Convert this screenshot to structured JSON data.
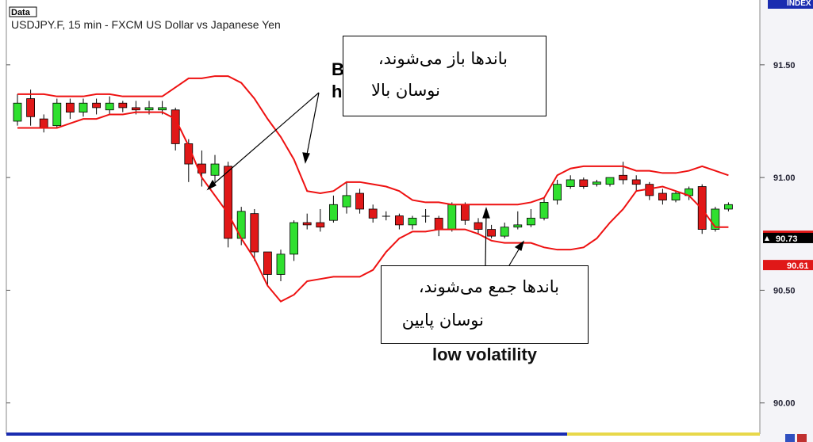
{
  "chart_data": {
    "type": "candlestick",
    "header_label": "Data",
    "title": "USDJPY.F, 15 min - FXCM US Dollar vs Japanese Yen",
    "axis_label": "INDEX",
    "ylim": [
      89.89,
      91.77
    ],
    "yticks": [
      {
        "value": 91.5,
        "label": "91.50"
      },
      {
        "value": 91,
        "label": "91.00"
      },
      {
        "value": 90.5,
        "label": "90.50"
      },
      {
        "value": 90,
        "label": "90.00"
      }
    ],
    "up_color": "#2fe02f",
    "down_color": "#e01818",
    "candles": {
      "open": [
        91.25,
        91.35,
        91.26,
        91.23,
        91.33,
        91.29,
        91.33,
        91.3,
        91.33,
        91.31,
        91.3,
        91.3,
        91.3,
        91.15,
        91.06,
        91.01,
        91.05,
        90.73,
        90.84,
        90.67,
        90.57,
        90.66,
        90.8,
        90.8,
        90.81,
        90.87,
        90.93,
        90.86,
        90.83,
        90.83,
        90.79,
        90.83,
        90.82,
        90.77,
        90.88,
        90.8,
        90.77,
        90.74,
        90.78,
        90.79,
        90.82,
        90.9,
        90.96,
        90.99,
        90.97,
        90.97,
        91.01,
        90.99,
        90.97,
        90.93,
        90.9,
        90.92,
        90.96,
        90.77,
        90.86
      ],
      "high": [
        91.37,
        91.39,
        91.28,
        91.35,
        91.35,
        91.35,
        91.35,
        91.36,
        91.34,
        91.34,
        91.34,
        91.34,
        91.31,
        91.17,
        91.12,
        91.1,
        91.07,
        90.87,
        90.86,
        90.67,
        90.68,
        90.81,
        90.84,
        90.86,
        90.92,
        90.98,
        90.95,
        90.88,
        90.85,
        90.84,
        90.83,
        90.86,
        90.83,
        90.89,
        90.89,
        90.82,
        90.79,
        90.8,
        90.85,
        90.86,
        90.91,
        90.99,
        91.01,
        91.0,
        90.99,
        91.0,
        91.07,
        91.01,
        90.98,
        90.95,
        90.94,
        90.96,
        90.97,
        90.87,
        90.89
      ],
      "low": [
        91.23,
        91.23,
        91.2,
        91.22,
        91.26,
        91.27,
        91.28,
        91.28,
        91.29,
        91.28,
        91.28,
        91.28,
        91.12,
        90.98,
        90.96,
        90.98,
        90.69,
        90.7,
        90.63,
        90.52,
        90.54,
        90.63,
        90.77,
        90.76,
        90.8,
        90.84,
        90.84,
        90.8,
        90.81,
        90.77,
        90.77,
        90.8,
        90.74,
        90.76,
        90.79,
        90.75,
        90.73,
        90.73,
        90.77,
        90.78,
        90.81,
        90.88,
        90.95,
        90.95,
        90.96,
        90.96,
        90.97,
        90.94,
        90.9,
        90.88,
        90.89,
        90.9,
        90.75,
        90.76,
        90.85
      ],
      "close": [
        91.33,
        91.27,
        91.22,
        91.33,
        91.29,
        91.33,
        91.31,
        91.33,
        91.31,
        91.3,
        91.31,
        91.31,
        91.15,
        91.06,
        91.02,
        91.06,
        90.73,
        90.85,
        90.67,
        90.57,
        90.66,
        90.8,
        90.79,
        90.78,
        90.88,
        90.92,
        90.86,
        90.82,
        90.83,
        90.79,
        90.82,
        90.83,
        90.77,
        90.88,
        90.81,
        90.77,
        90.74,
        90.78,
        90.79,
        90.82,
        90.89,
        90.97,
        90.99,
        90.96,
        90.98,
        91.0,
        90.99,
        90.97,
        90.92,
        90.9,
        90.93,
        90.95,
        90.77,
        90.86,
        90.88
      ]
    },
    "bands": {
      "color": "#ee1111",
      "upper": [
        91.37,
        91.37,
        91.37,
        91.36,
        91.36,
        91.36,
        91.37,
        91.37,
        91.36,
        91.36,
        91.36,
        91.36,
        91.4,
        91.44,
        91.44,
        91.45,
        91.45,
        91.42,
        91.35,
        91.26,
        91.18,
        91.08,
        90.94,
        90.93,
        90.94,
        90.98,
        90.98,
        90.97,
        90.96,
        90.94,
        90.9,
        90.89,
        90.89,
        90.88,
        90.88,
        90.88,
        90.88,
        90.88,
        90.88,
        90.89,
        90.91,
        91.01,
        91.04,
        91.05,
        91.05,
        91.05,
        91.05,
        91.03,
        91.03,
        91.02,
        91.02,
        91.03,
        91.05,
        91.03,
        91.01
      ],
      "lower": [
        91.22,
        91.22,
        91.22,
        91.22,
        91.24,
        91.26,
        91.26,
        91.28,
        91.28,
        91.29,
        91.29,
        91.29,
        91.26,
        91.14,
        91.0,
        90.92,
        90.84,
        90.73,
        90.64,
        90.52,
        90.45,
        90.48,
        90.54,
        90.55,
        90.56,
        90.56,
        90.56,
        90.59,
        90.67,
        90.73,
        90.76,
        90.76,
        90.77,
        90.77,
        90.77,
        90.75,
        90.72,
        90.71,
        90.71,
        90.71,
        90.69,
        90.68,
        90.68,
        90.69,
        90.73,
        90.8,
        90.86,
        90.94,
        90.95,
        90.96,
        90.94,
        90.92,
        90.86,
        90.78,
        90.78
      ]
    },
    "price_tags": [
      {
        "value": 90.74,
        "label": "90.74",
        "color": "#e01818"
      },
      {
        "value": 90.73,
        "label": "90.73",
        "color": "#000000"
      },
      {
        "value": 90.61,
        "label": "90.61",
        "color": "#e01818"
      }
    ],
    "annotations": {
      "hidden_top": [
        "B",
        "h"
      ],
      "box_top": [
        "باندها باز می‌شوند،",
        "نوسان بالا"
      ],
      "box_bottom": [
        "باندها جمع می‌شوند،",
        "نوسان پایین"
      ],
      "low_label": "low volatility"
    }
  }
}
